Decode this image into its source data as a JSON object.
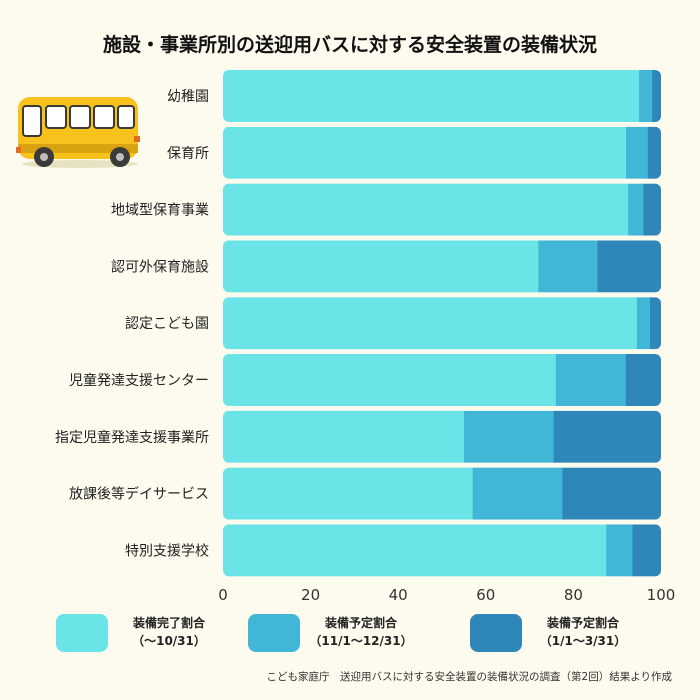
{
  "colors": {
    "background": "#fdfbee",
    "series": [
      "#6be4e8",
      "#41b6d6",
      "#2f86b8"
    ]
  },
  "chart_data": {
    "type": "bar",
    "orientation": "horizontal",
    "stacked": true,
    "title": "施設・事業所別の送迎用バスに対する安全装置の装備状況",
    "categories": [
      "幼稚園",
      "保育所",
      "地域型保育事業",
      "認可外保育施設",
      "認定こども園",
      "児童発達支援センター",
      "指定児童発達支援事業所",
      "放課後等デイサービス",
      "特別支援学校"
    ],
    "series": [
      {
        "name": "装備完了割合（～10/31）",
        "label_lines": [
          "装備完了割合",
          "（～10/31）"
        ],
        "values": [
          95,
          92,
          92.5,
          72,
          94.5,
          76,
          55,
          57,
          87.5
        ]
      },
      {
        "name": "装備予定割合（11/1～12/31）",
        "label_lines": [
          "装備予定割合",
          "（11/1～12/31）"
        ],
        "values": [
          3,
          5,
          3.5,
          13.5,
          3,
          16,
          20.5,
          20.5,
          6
        ]
      },
      {
        "name": "装備予定割合（1/1～3/31）",
        "label_lines": [
          "装備予定割合",
          "（1/1～3/31）"
        ],
        "values": [
          2,
          3,
          4,
          14.5,
          2.5,
          8,
          24.5,
          22.5,
          6.5
        ]
      }
    ],
    "xlim": [
      0,
      100
    ],
    "xticks": [
      0,
      20,
      40,
      60,
      80,
      100
    ],
    "grid": false,
    "legend_position": "bottom"
  },
  "decoration": {
    "icon": "school-bus-icon"
  },
  "source": "こども家庭庁　送迎用バスに対する安全装置の装備状況の調査（第2回）結果より作成"
}
